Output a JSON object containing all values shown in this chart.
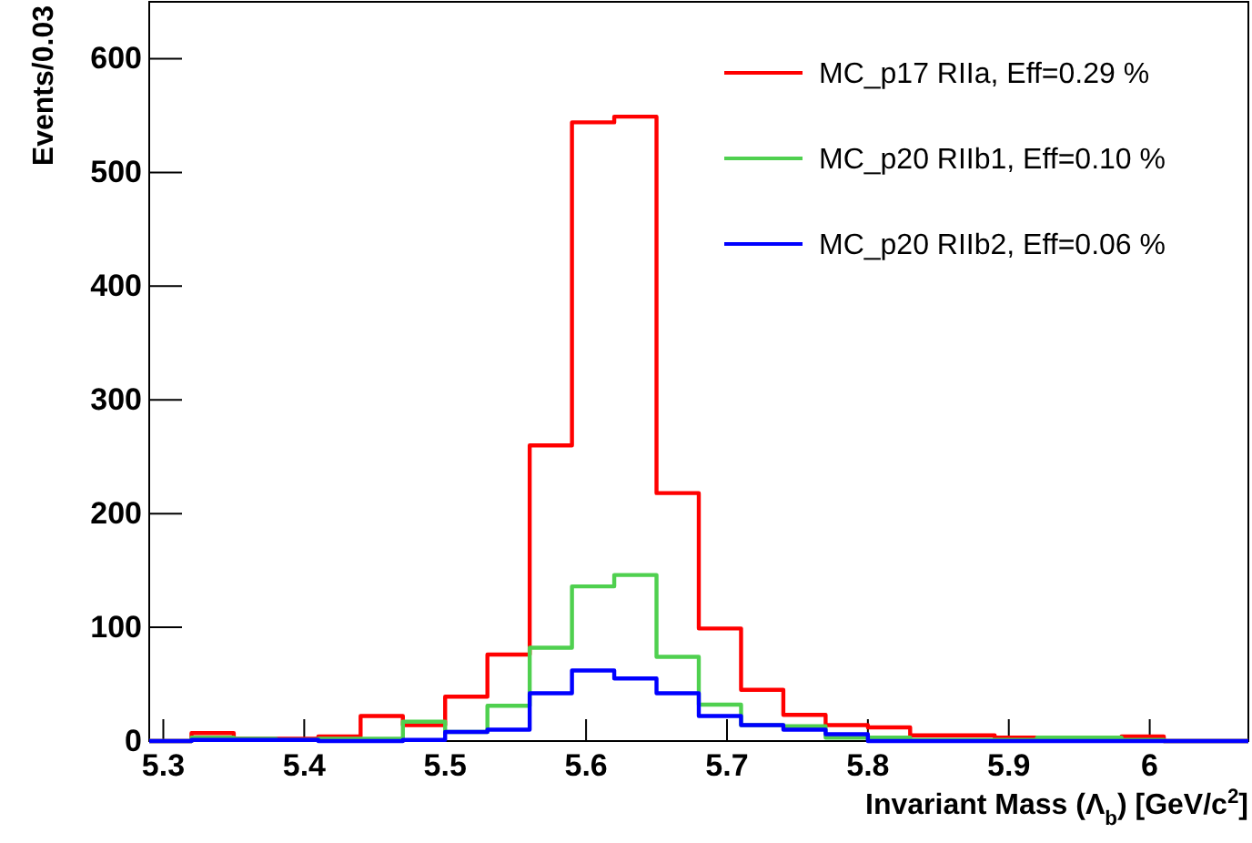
{
  "chart_data": {
    "type": "histogram",
    "xlabel": "Invariant Mass (Λ$_{b}$) [GeV/c$^{2}$]",
    "ylabel": "Events/0.03",
    "bins": [
      5.29,
      5.32,
      5.35,
      5.38,
      5.41,
      5.44,
      5.47,
      5.5,
      5.53,
      5.56,
      5.59,
      5.62,
      5.65,
      5.68,
      5.71,
      5.74,
      5.77,
      5.8,
      5.83,
      5.86,
      5.89,
      5.92,
      5.95,
      5.98,
      6.01,
      6.04,
      6.07
    ],
    "series": [
      {
        "name": "MC_p17 RIIa, Eff=0.29 %",
        "color": "#ff0000",
        "values": [
          0,
          7,
          2,
          2,
          4,
          22,
          14,
          39,
          76,
          260,
          544,
          549,
          218,
          99,
          45,
          23,
          14,
          12,
          5,
          5,
          3,
          3,
          3,
          4,
          0,
          0
        ]
      },
      {
        "name": "MC_p20 RIIb1, Eff=0.10 %",
        "color": "#4fd04f",
        "values": [
          0,
          3,
          2,
          1,
          2,
          2,
          17,
          8,
          31,
          82,
          136,
          146,
          74,
          32,
          14,
          13,
          3,
          3,
          1,
          1,
          1,
          3,
          3,
          1,
          0,
          0
        ]
      },
      {
        "name": "MC_p20 RIIb2, Eff=0.06 %",
        "color": "#0000ff",
        "values": [
          0,
          1,
          1,
          1,
          0,
          0,
          1,
          8,
          10,
          42,
          62,
          55,
          42,
          22,
          14,
          10,
          6,
          0,
          0,
          0,
          0,
          0,
          0,
          0,
          0,
          0
        ]
      }
    ],
    "xlim": [
      5.29,
      6.07
    ],
    "ylim": [
      0,
      650
    ],
    "xticks": [
      5.3,
      5.4,
      5.5,
      5.6,
      5.7,
      5.8,
      5.9,
      6
    ],
    "yticks": [
      0,
      100,
      200,
      300,
      400,
      500,
      600
    ],
    "legend": "top right",
    "grid": false
  }
}
